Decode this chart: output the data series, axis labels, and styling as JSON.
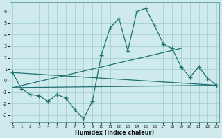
{
  "xlabel": "Humidex (Indice chaleur)",
  "background_color": "#ceeaec",
  "grid_color": "#aad4d6",
  "line_color": "#1e7070",
  "x_ticks": [
    0,
    1,
    2,
    3,
    4,
    5,
    6,
    7,
    8,
    9,
    10,
    11,
    12,
    13,
    14,
    15,
    16,
    17,
    18,
    19,
    20,
    21,
    22,
    23
  ],
  "ylim": [
    -3.6,
    6.8
  ],
  "xlim": [
    -0.3,
    23.3
  ],
  "yticks": [
    -3,
    -2,
    -1,
    0,
    1,
    2,
    3,
    4,
    5,
    6
  ],
  "main_series": {
    "x": [
      0,
      1,
      2,
      3,
      4,
      5,
      6,
      7,
      8,
      9,
      10,
      11,
      12,
      13,
      14,
      15,
      16,
      17,
      18,
      19,
      20,
      21,
      22,
      23
    ],
    "y": [
      0.7,
      -0.7,
      -1.2,
      -1.3,
      -1.8,
      -1.2,
      -1.5,
      -2.5,
      -3.3,
      -1.8,
      2.2,
      4.6,
      5.4,
      2.6,
      6.0,
      6.3,
      4.8,
      3.2,
      2.8,
      1.2,
      0.3,
      1.2,
      0.2,
      -0.4
    ]
  },
  "trend_lines": [
    {
      "x": [
        0,
        23
      ],
      "y": [
        0.7,
        -0.4
      ]
    },
    {
      "x": [
        0,
        19
      ],
      "y": [
        -0.6,
        2.8
      ]
    },
    {
      "x": [
        0,
        23
      ],
      "y": [
        -0.6,
        -0.4
      ]
    }
  ]
}
